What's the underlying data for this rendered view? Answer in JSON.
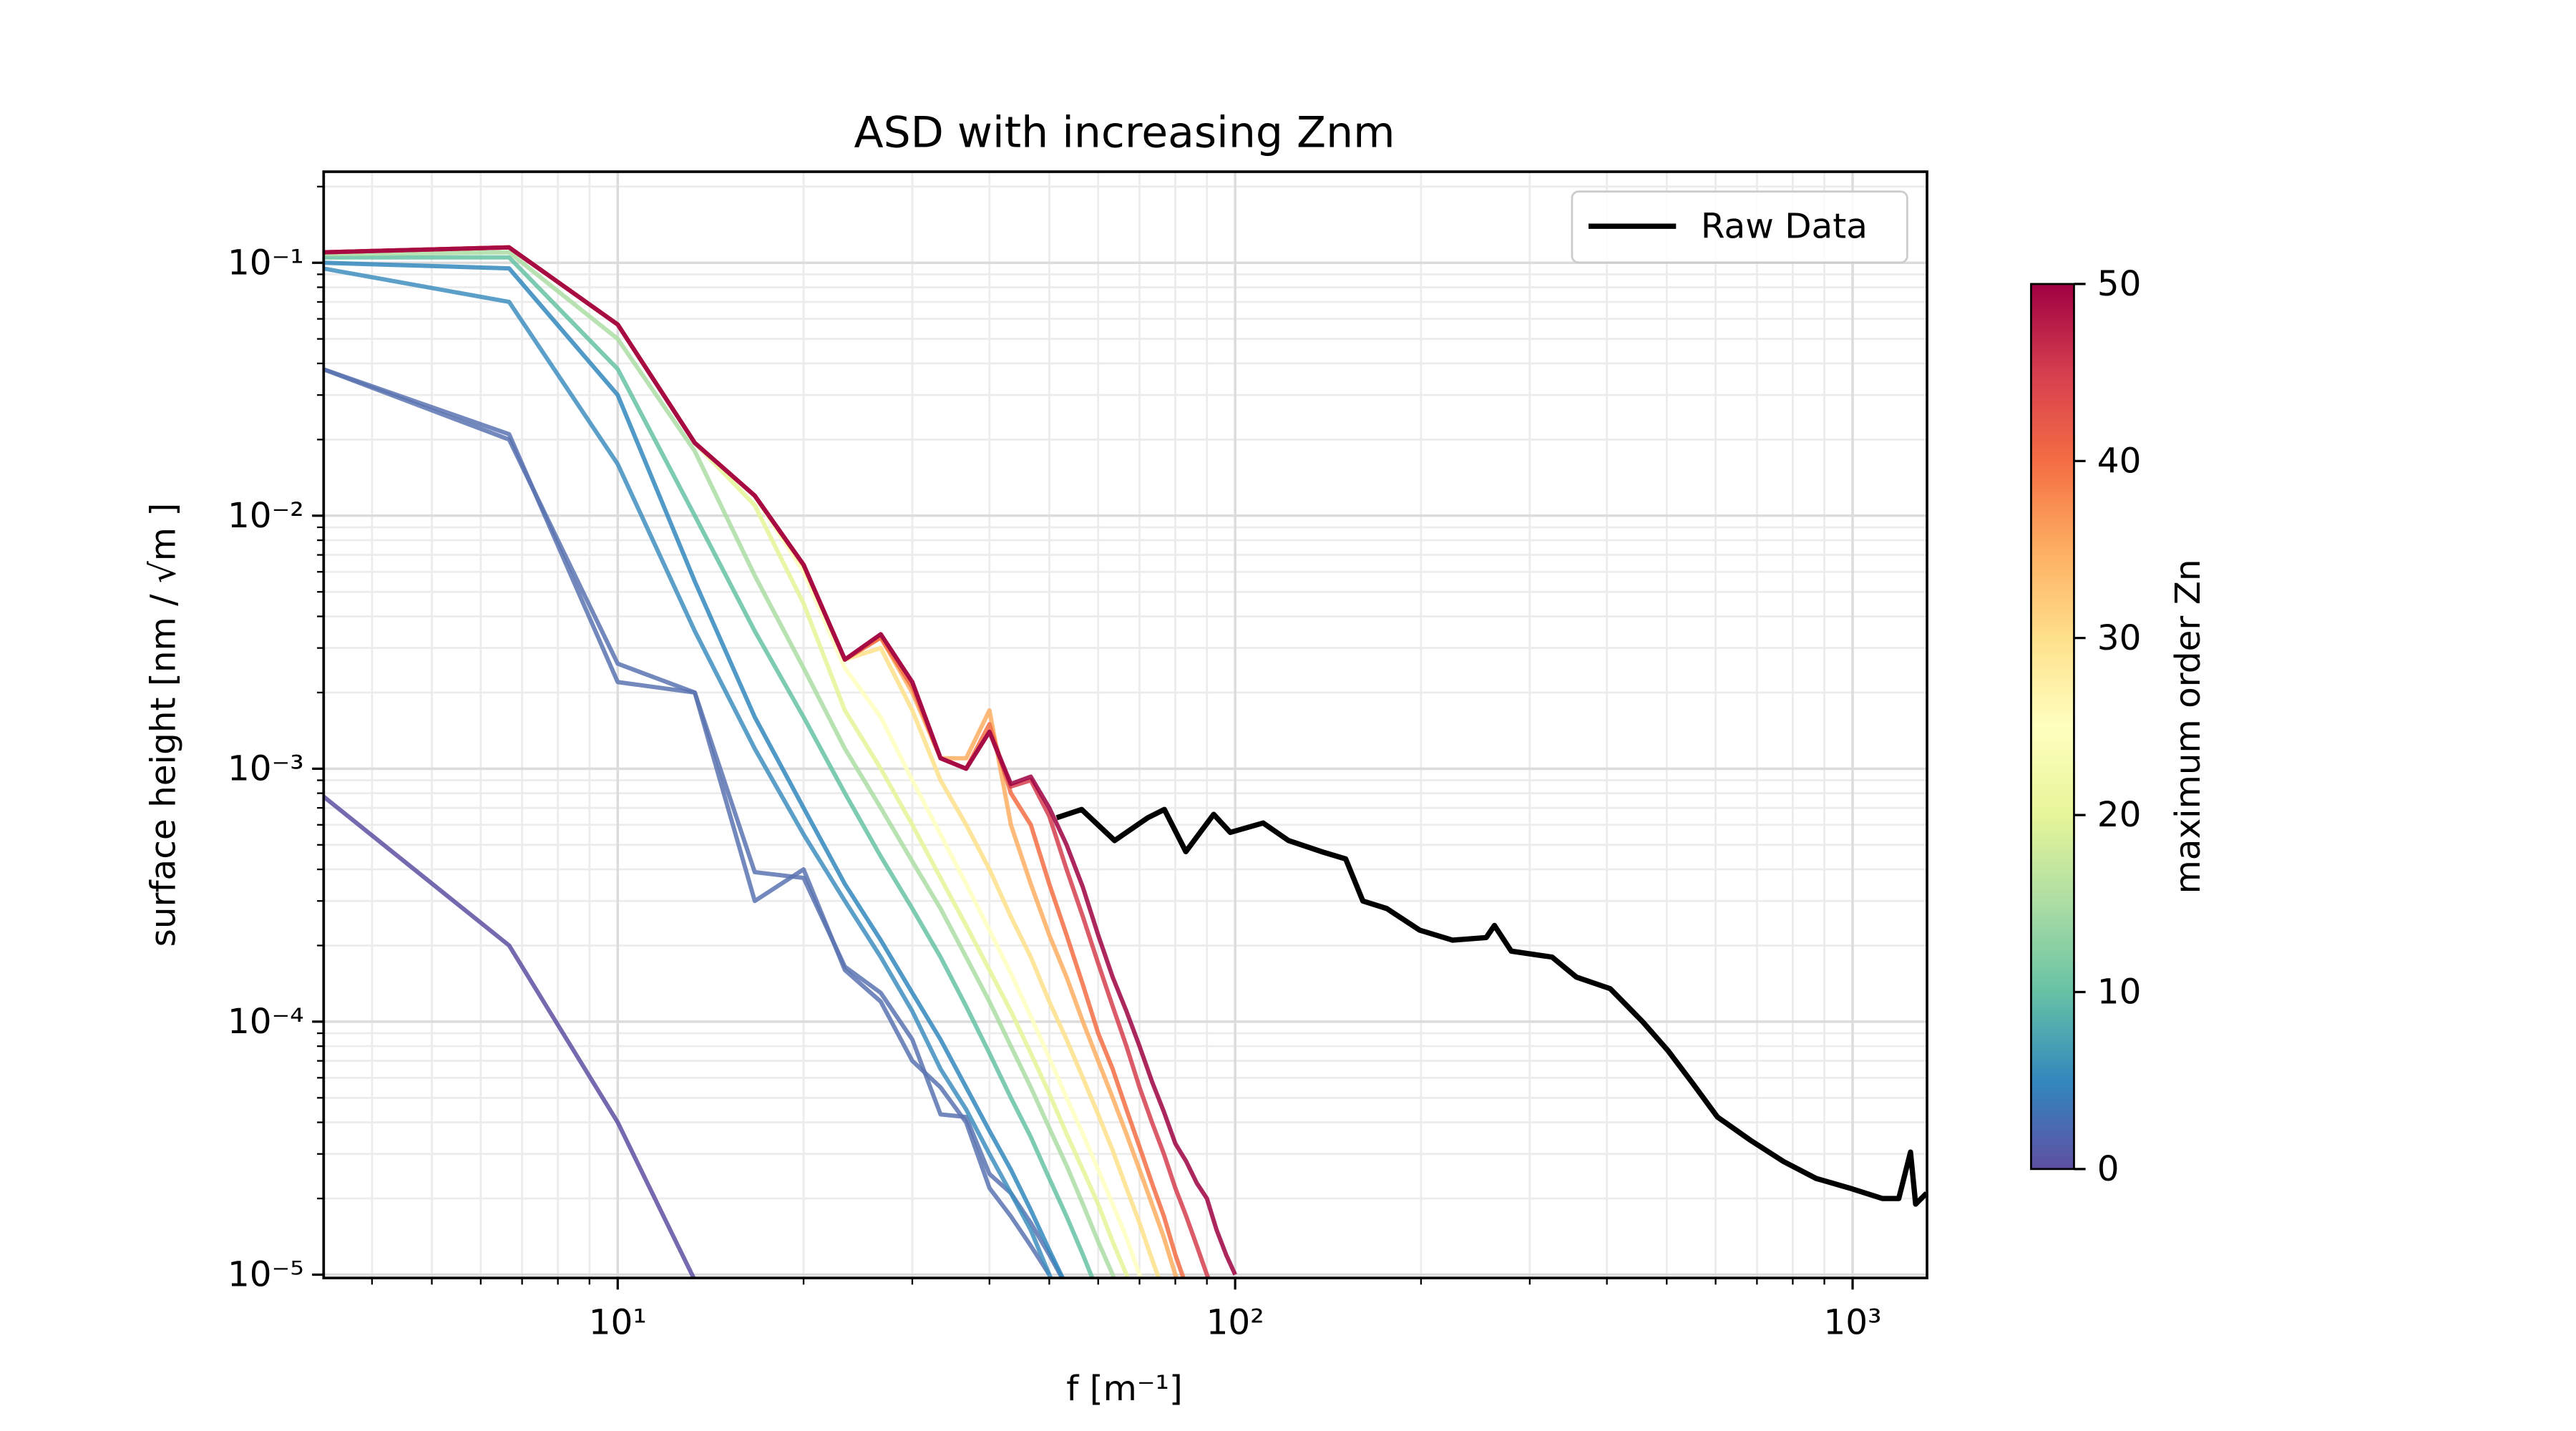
{
  "chart_data": {
    "type": "line",
    "title": "ASD with increasing Znm",
    "x_label": "f [m⁻¹]",
    "y_label": "surface height [nm / √m ]",
    "xscale": "log",
    "yscale": "log",
    "grid": true,
    "minor_grid": true,
    "legend_loc": "upper right",
    "xlim": [
      3.34,
      1320
    ],
    "ylim": [
      9.7e-06,
      0.229
    ],
    "xticks": [
      {
        "value": 10,
        "label": "10¹"
      },
      {
        "value": 100,
        "label": "10²"
      },
      {
        "value": 1000,
        "label": "10³"
      }
    ],
    "yticks": [
      {
        "value": 0.1,
        "label": "10⁻¹"
      },
      {
        "value": 0.01,
        "label": "10⁻²"
      },
      {
        "value": 0.001,
        "label": "10⁻³"
      },
      {
        "value": 0.0001,
        "label": "10⁻⁴"
      },
      {
        "value": 1e-05,
        "label": "10⁻⁵"
      }
    ],
    "colorbar": {
      "label": "maximum order Zn",
      "lim": [
        0,
        50
      ],
      "ticks": [
        0,
        10,
        20,
        30,
        40,
        50
      ],
      "colors": [
        "#5e4fa2",
        "#3288bd",
        "#66c2a5",
        "#abdda4",
        "#e6f598",
        "#ffffbf",
        "#fee08b",
        "#fdae61",
        "#f46d43",
        "#d53e4f",
        "#9e0142"
      ]
    },
    "series": [
      {
        "name": "Raw Data",
        "color": "#000000",
        "legend": true,
        "x": [
          51.4,
          56.4,
          63.8,
          72.2,
          76.8,
          83.2,
          92.3,
          98.2,
          111,
          122,
          138,
          151,
          161,
          176,
          199,
          225,
          255,
          263,
          280,
          326,
          357,
          405,
          457,
          502,
          551,
          604,
          683,
          773,
          873,
          988,
          1117,
          1188,
          1241,
          1265,
          1318
        ],
        "values": [
          0.00064,
          0.00069,
          0.00052,
          0.00064,
          0.00069,
          0.00047,
          0.00066,
          0.00056,
          0.00061,
          0.00052,
          0.00047,
          0.00044,
          0.0003,
          0.00028,
          0.00023,
          0.00021,
          0.000215,
          0.00024,
          0.00019,
          0.00018,
          0.00015,
          0.000135,
          0.0001,
          7.7e-05,
          5.7e-05,
          4.2e-05,
          3.4e-05,
          2.8e-05,
          2.4e-05,
          2.2e-05,
          2e-05,
          2e-05,
          3.05e-05,
          1.9e-05,
          2.1e-05
        ]
      },
      {
        "color": "#5e4fa2",
        "x": [
          3.33,
          6.67,
          10,
          13.33
        ],
        "values": [
          0.00078,
          0.0002,
          4e-05,
          9.5e-06
        ]
      },
      {
        "color": "#5a74b2",
        "x": [
          3.33,
          6.67,
          10,
          13.33,
          16.67,
          20,
          23.33,
          26.67,
          30,
          33.33,
          36.67,
          40,
          43.33,
          46.67,
          50,
          53.33,
          56.67
        ],
        "values": [
          0.038,
          0.021,
          0.0022,
          0.002,
          0.00039,
          0.00037,
          0.000165,
          0.00013,
          8.5e-05,
          4.3e-05,
          4.2e-05,
          2.5e-05,
          2.1e-05,
          1.6e-05,
          1.2e-05,
          9e-06,
          7e-06
        ]
      },
      {
        "color": "#5a74b2",
        "x": [
          3.33,
          6.67,
          10,
          13.33,
          16.67,
          20,
          23.33,
          26.67,
          30,
          33.33,
          36.67,
          40,
          43.33,
          46.67,
          50
        ],
        "values": [
          0.038,
          0.02,
          0.0026,
          0.002,
          0.0003,
          0.0004,
          0.00016,
          0.00012,
          7e-05,
          5.5e-05,
          4e-05,
          2.2e-05,
          1.7e-05,
          1.3e-05,
          1e-05
        ]
      },
      {
        "color": "#3f8fc0",
        "x": [
          3.33,
          6.67,
          10,
          13.33,
          16.67,
          20,
          23.33,
          26.67,
          30,
          33.33,
          36.67,
          40,
          43.33,
          46.67,
          50,
          53.33
        ],
        "values": [
          0.095,
          0.07,
          0.016,
          0.0035,
          0.0012,
          0.00055,
          0.0003,
          0.00018,
          0.00011,
          6.5e-05,
          4.5e-05,
          3e-05,
          2.1e-05,
          1.5e-05,
          1e-05,
          7e-06
        ]
      },
      {
        "color": "#3288bd",
        "x": [
          3.33,
          6.67,
          10,
          13.33,
          16.67,
          20,
          23.33,
          26.67,
          30,
          33.33,
          36.67,
          40,
          43.33,
          46.67,
          50,
          53.33
        ],
        "values": [
          0.1,
          0.095,
          0.03,
          0.0055,
          0.0016,
          0.0007,
          0.00035,
          0.00021,
          0.00013,
          8.5e-05,
          5.5e-05,
          3.7e-05,
          2.6e-05,
          1.8e-05,
          1.25e-05,
          9e-06
        ]
      },
      {
        "color": "#66c2a5",
        "x": [
          3.33,
          6.67,
          10,
          13.33,
          16.67,
          20,
          23.33,
          26.67,
          30,
          33.33,
          36.67,
          40,
          43.33,
          46.67,
          50,
          53.33,
          56.67,
          60
        ],
        "values": [
          0.105,
          0.105,
          0.038,
          0.01,
          0.0035,
          0.0016,
          0.0008,
          0.00045,
          0.00028,
          0.00018,
          0.000115,
          7.5e-05,
          5e-05,
          3.5e-05,
          2.4e-05,
          1.7e-05,
          1.2e-05,
          8.5e-06
        ]
      },
      {
        "color": "#abdda4",
        "x": [
          3.33,
          6.67,
          10,
          13.33,
          16.67,
          20,
          23.33,
          26.67,
          30,
          33.33,
          36.67,
          40,
          43.33,
          46.67,
          50,
          53.33,
          56.67,
          60,
          63.33,
          66.67
        ],
        "values": [
          0.108,
          0.11,
          0.05,
          0.018,
          0.0058,
          0.0025,
          0.0012,
          0.0007,
          0.00043,
          0.00028,
          0.00018,
          0.00012,
          8e-05,
          5.5e-05,
          3.8e-05,
          2.7e-05,
          1.9e-05,
          1.35e-05,
          1e-05,
          7e-06
        ]
      },
      {
        "color": "#e6f598",
        "x": [
          3.33,
          6.67,
          10,
          13.33,
          16.67,
          20,
          23.33,
          26.67,
          30,
          33.33,
          36.67,
          40,
          43.33,
          46.67,
          50,
          53.33,
          56.67,
          60,
          63.33,
          66.67,
          70
        ],
        "values": [
          0.11,
          0.115,
          0.057,
          0.0194,
          0.011,
          0.0045,
          0.0017,
          0.001,
          0.0006,
          0.00037,
          0.00024,
          0.00016,
          0.00011,
          7.5e-05,
          5.2e-05,
          3.6e-05,
          2.6e-05,
          1.9e-05,
          1.35e-05,
          1e-05,
          7e-06
        ]
      },
      {
        "color": "#ffffbf",
        "x": [
          3.33,
          6.67,
          10,
          13.33,
          16.67,
          20,
          23.33,
          26.67,
          30,
          33.33,
          36.67,
          40,
          43.33,
          46.67,
          50,
          53.33,
          56.67,
          60,
          63.33,
          66.67,
          70,
          73.33
        ],
        "values": [
          0.11,
          0.115,
          0.057,
          0.0194,
          0.012,
          0.006,
          0.0025,
          0.0016,
          0.0009,
          0.00055,
          0.00035,
          0.00023,
          0.000155,
          0.000105,
          7.2e-05,
          5e-05,
          3.6e-05,
          2.6e-05,
          1.9e-05,
          1.4e-05,
          1e-05,
          7.5e-06
        ]
      },
      {
        "color": "#fee08b",
        "x": [
          3.33,
          6.67,
          10,
          13.33,
          16.67,
          20,
          23.33,
          26.67,
          30,
          33.33,
          36.67,
          40,
          43.33,
          46.67,
          50,
          53.33,
          56.67,
          60,
          63.33,
          66.67,
          70,
          73.33,
          76.67
        ],
        "values": [
          0.11,
          0.115,
          0.057,
          0.0194,
          0.012,
          0.0063,
          0.0027,
          0.003,
          0.0017,
          0.0009,
          0.0006,
          0.0004,
          0.00026,
          0.00018,
          0.00012,
          8.5e-05,
          6e-05,
          4.3e-05,
          3.1e-05,
          2.2e-05,
          1.6e-05,
          1.15e-05,
          8.5e-06
        ]
      },
      {
        "color": "#fdae61",
        "x": [
          3.33,
          6.67,
          10,
          13.33,
          16.67,
          20,
          23.33,
          26.67,
          30,
          33.33,
          36.67,
          40,
          43.33,
          46.67,
          50,
          53.33,
          56.67,
          60,
          63.33,
          66.67,
          70,
          73.33,
          76.67,
          80,
          83.33
        ],
        "values": [
          0.11,
          0.115,
          0.057,
          0.0194,
          0.012,
          0.0064,
          0.0027,
          0.0033,
          0.002,
          0.0011,
          0.0011,
          0.0017,
          0.0006,
          0.00035,
          0.00022,
          0.00015,
          0.0001,
          7e-05,
          5e-05,
          3.6e-05,
          2.6e-05,
          1.9e-05,
          1.4e-05,
          1e-05,
          7.5e-06
        ]
      },
      {
        "color": "#f46d43",
        "x": [
          3.33,
          6.67,
          10,
          13.33,
          16.67,
          20,
          23.33,
          26.67,
          30,
          33.33,
          36.67,
          40,
          43.33,
          46.67,
          50,
          53.33,
          56.67,
          60,
          63.33,
          66.67,
          70,
          73.33,
          76.67,
          80,
          83.33
        ],
        "values": [
          0.11,
          0.115,
          0.057,
          0.0194,
          0.012,
          0.0064,
          0.0027,
          0.0033,
          0.0021,
          0.0011,
          0.001,
          0.0015,
          0.0008,
          0.0006,
          0.00035,
          0.00022,
          0.00014,
          9e-05,
          6.5e-05,
          4.5e-05,
          3.2e-05,
          2.3e-05,
          1.7e-05,
          1.2e-05,
          9e-06
        ]
      },
      {
        "color": "#d53e4f",
        "x": [
          3.33,
          6.67,
          10,
          13.33,
          16.67,
          20,
          23.33,
          26.67,
          30,
          33.33,
          36.67,
          40,
          43.33,
          46.67,
          50,
          53.33,
          56.67,
          60,
          63.33,
          66.67,
          70,
          73.33,
          76.67,
          80,
          83.33,
          86.67,
          90,
          93.33
        ],
        "values": [
          0.11,
          0.115,
          0.057,
          0.0194,
          0.012,
          0.0064,
          0.0027,
          0.0034,
          0.0022,
          0.0011,
          0.001,
          0.0014,
          0.00085,
          0.0009,
          0.00065,
          0.0004,
          0.00026,
          0.00017,
          0.000115,
          8e-05,
          5.5e-05,
          4e-05,
          3e-05,
          2.2e-05,
          1.7e-05,
          1.3e-05,
          1e-05,
          8e-06
        ]
      },
      {
        "color": "#9e0142",
        "x": [
          3.33,
          6.67,
          10,
          13.33,
          16.67,
          20,
          23.33,
          26.67,
          30,
          33.33,
          36.67,
          40,
          43.33,
          46.67,
          50,
          53.33,
          56.67,
          60,
          63.33,
          66.67,
          70,
          73.33,
          76.67,
          80,
          83.33,
          86.67,
          90,
          93.33,
          96.67,
          100
        ],
        "values": [
          0.11,
          0.115,
          0.057,
          0.0194,
          0.012,
          0.0064,
          0.0027,
          0.0034,
          0.0022,
          0.0011,
          0.001,
          0.0014,
          0.00087,
          0.00093,
          0.0007,
          0.0005,
          0.00034,
          0.00022,
          0.00015,
          0.00011,
          8e-05,
          5.8e-05,
          4.4e-05,
          3.3e-05,
          2.8e-05,
          2.3e-05,
          2e-05,
          1.5e-05,
          1.2e-05,
          1e-05
        ]
      }
    ]
  }
}
